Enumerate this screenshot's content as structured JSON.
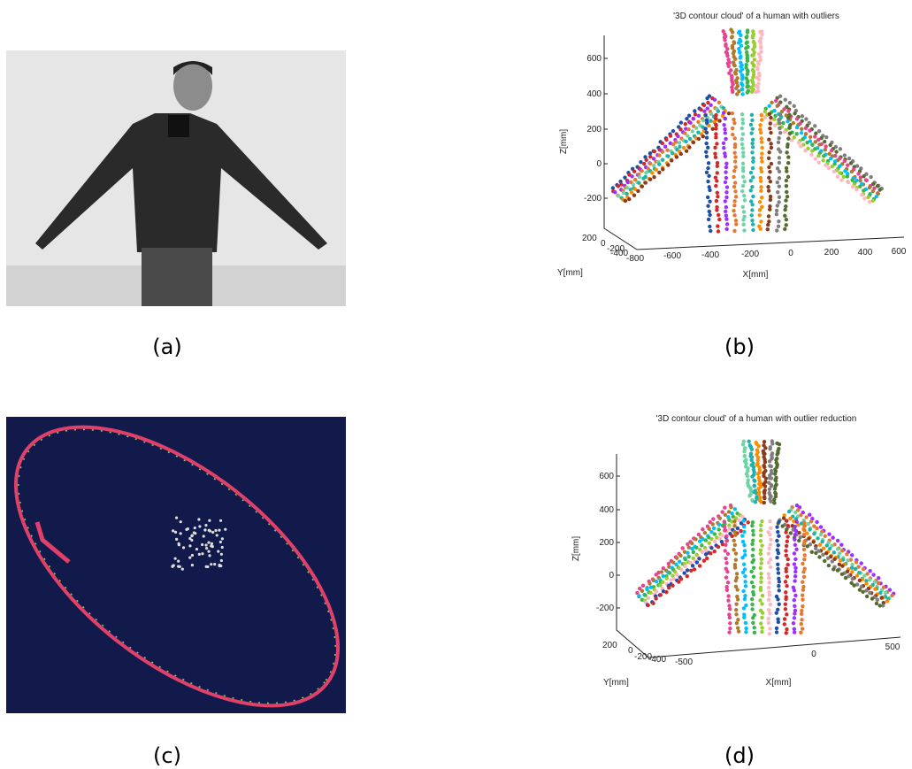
{
  "panels": [
    {
      "caption": "(a)"
    },
    {
      "caption": "(b)",
      "title": "'3D contour cloud' of a human with outliers",
      "z_label": "Z[mm]",
      "y_label": "Y[mm]",
      "x_label": "X[mm]",
      "z_ticks": [
        "600",
        "400",
        "200",
        "0",
        "-200"
      ],
      "y_ticks": [
        "200",
        "0",
        "-200",
        "-400"
      ],
      "x_ticks": [
        "-800",
        "-600",
        "-400",
        "-200",
        "0",
        "200",
        "400",
        "600"
      ]
    },
    {
      "caption": "(c)"
    },
    {
      "caption": "(d)",
      "title": "'3D contour cloud' of a human with outlier reduction",
      "z_label": "Z[mm]",
      "y_label": "Y[mm]",
      "x_label": "X[mm]",
      "z_ticks": [
        "600",
        "400",
        "200",
        "0",
        "-200"
      ],
      "y_ticks": [
        "200",
        "0",
        "-200",
        "-400"
      ],
      "x_ticks": [
        "-500",
        "0",
        "500"
      ]
    }
  ]
}
